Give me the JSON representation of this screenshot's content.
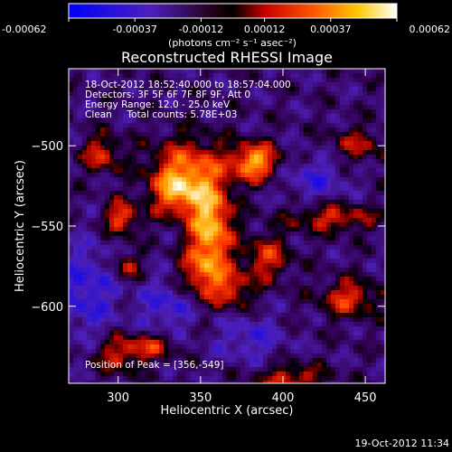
{
  "chart_data": {
    "type": "heatmap",
    "title": "Reconstructed RHESSI Image",
    "xlabel": "Heliocentric X (arcsec)",
    "ylabel": "Heliocentric Y (arcsec)",
    "xlim": [
      270,
      462
    ],
    "ylim": [
      -648,
      -452
    ],
    "x_ticks": [
      300,
      350,
      400,
      450
    ],
    "y_ticks": [
      -500,
      -550,
      -600
    ],
    "colorbar": {
      "ticks": [
        "-0.00062",
        "-0.00037",
        "-0.00012",
        "0.00012",
        "0.00037",
        "0.00062"
      ],
      "range": [
        -0.00062,
        0.00062
      ],
      "unit_label": "(photons cm⁻² s⁻¹ asec⁻²)"
    },
    "info_lines": [
      "18-Oct-2012 18:52:40.000 to 18:57:04.000",
      "Detectors: 3F 5F 6F 7F 8F 9F, Att 0",
      "Energy Range: 12.0 - 25.0 keV",
      "Clean     Total counts: 5.78E+03"
    ],
    "peak_label": "Position of Peak = [356,-549]",
    "peak": {
      "x": 356,
      "y": -549
    },
    "sources": [
      {
        "x": 356,
        "y": -549,
        "amp": 1.0,
        "sx": 9,
        "sy": 18
      },
      {
        "x": 383,
        "y": -510,
        "amp": 0.95,
        "sx": 10,
        "sy": 8
      },
      {
        "x": 342,
        "y": -515,
        "amp": 0.7,
        "sx": 16,
        "sy": 14
      },
      {
        "x": 335,
        "y": -530,
        "amp": 0.65,
        "sx": 10,
        "sy": 10
      },
      {
        "x": 352,
        "y": -580,
        "amp": 0.65,
        "sx": 10,
        "sy": 12
      },
      {
        "x": 370,
        "y": -590,
        "amp": 0.5,
        "sx": 8,
        "sy": 8
      },
      {
        "x": 302,
        "y": -545,
        "amp": 0.7,
        "sx": 7,
        "sy": 7
      },
      {
        "x": 290,
        "y": -505,
        "amp": 0.55,
        "sx": 8,
        "sy": 8
      },
      {
        "x": 305,
        "y": -575,
        "amp": 0.5,
        "sx": 6,
        "sy": 6
      },
      {
        "x": 430,
        "y": -545,
        "amp": 0.55,
        "sx": 18,
        "sy": 6
      },
      {
        "x": 440,
        "y": -595,
        "amp": 0.6,
        "sx": 12,
        "sy": 8
      },
      {
        "x": 320,
        "y": -625,
        "amp": 0.5,
        "sx": 10,
        "sy": 6
      },
      {
        "x": 300,
        "y": -630,
        "amp": 0.5,
        "sx": 10,
        "sy": 8
      },
      {
        "x": 405,
        "y": -645,
        "amp": 0.55,
        "sx": 14,
        "sy": 6
      },
      {
        "x": 445,
        "y": -500,
        "amp": 0.4,
        "sx": 12,
        "sy": 8
      },
      {
        "x": 390,
        "y": -570,
        "amp": 0.55,
        "sx": 10,
        "sy": 10
      },
      {
        "x": 280,
        "y": -590,
        "amp": -0.45,
        "sx": 14,
        "sy": 20
      },
      {
        "x": 330,
        "y": -600,
        "amp": -0.4,
        "sx": 12,
        "sy": 12
      },
      {
        "x": 420,
        "y": -520,
        "amp": -0.35,
        "sx": 14,
        "sy": 10
      },
      {
        "x": 380,
        "y": -620,
        "amp": -0.35,
        "sx": 14,
        "sy": 10
      }
    ]
  },
  "footer": {
    "timestamp": "19-Oct-2012 11:34"
  }
}
